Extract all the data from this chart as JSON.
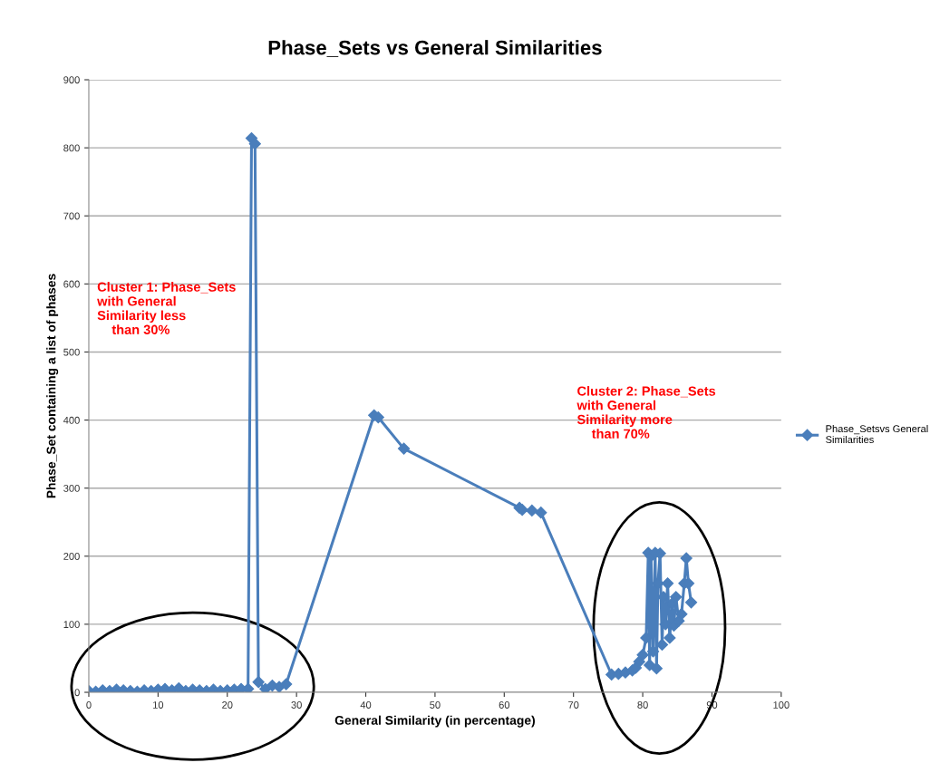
{
  "chart_data": {
    "type": "line",
    "title": "Phase_Sets vs General Similarities",
    "xlabel": "General Similarity (in percentage)",
    "ylabel": "Phase_Set containing a list of phases",
    "xlim": [
      0,
      100
    ],
    "xticks": [
      0,
      10,
      20,
      30,
      40,
      50,
      60,
      70,
      80,
      90,
      100
    ],
    "ylim": [
      0,
      900
    ],
    "yticks": [
      0,
      100,
      200,
      300,
      400,
      500,
      600,
      700,
      800,
      900
    ],
    "grid": "y",
    "legend": "right",
    "marker": "diamond",
    "line_style": "solid",
    "annotations": [
      "Cluster 1: Phase_Sets\nwith General\nSimilarity less\n    than 30%",
      "Cluster 2: Phase_Sets\nwith General\nSimilarity more\n    than 70%"
    ],
    "series": [
      {
        "name": "Phase_Setsvs General\nSimilarities",
        "color": "#4a7ebb",
        "x": [
          0,
          1,
          2,
          3,
          4,
          5,
          6,
          7,
          8,
          9,
          10,
          11,
          12,
          13,
          14,
          15,
          16,
          17,
          18,
          19,
          20,
          21,
          22,
          23,
          23.5,
          24,
          24.5,
          25.5,
          26.5,
          27.5,
          28.5,
          41.2,
          41.8,
          45.5,
          62.2,
          62.6,
          64,
          65.3,
          75.5,
          76.5,
          77.5,
          78.5,
          79,
          79.5,
          80,
          80.5,
          80.8,
          81,
          81.2,
          81.5,
          81.8,
          82,
          82.2,
          82.5,
          82.8,
          83,
          83.3,
          83.6,
          83.9,
          84.2,
          84.5,
          84.8,
          85.2,
          85.6,
          86,
          86.3,
          86.6,
          87
        ],
        "values": [
          2,
          1,
          3,
          2,
          4,
          3,
          2,
          1,
          3,
          2,
          4,
          5,
          3,
          6,
          2,
          4,
          3,
          2,
          4,
          2,
          3,
          4,
          5,
          5,
          814,
          806,
          15,
          5,
          10,
          8,
          12,
          407,
          404,
          358,
          271,
          268,
          267,
          264,
          26,
          27,
          29,
          32,
          36,
          45,
          55,
          80,
          205,
          40,
          200,
          60,
          205,
          35,
          160,
          204,
          70,
          140,
          100,
          160,
          80,
          130,
          98,
          140,
          105,
          115,
          160,
          197,
          160,
          132
        ]
      }
    ]
  }
}
